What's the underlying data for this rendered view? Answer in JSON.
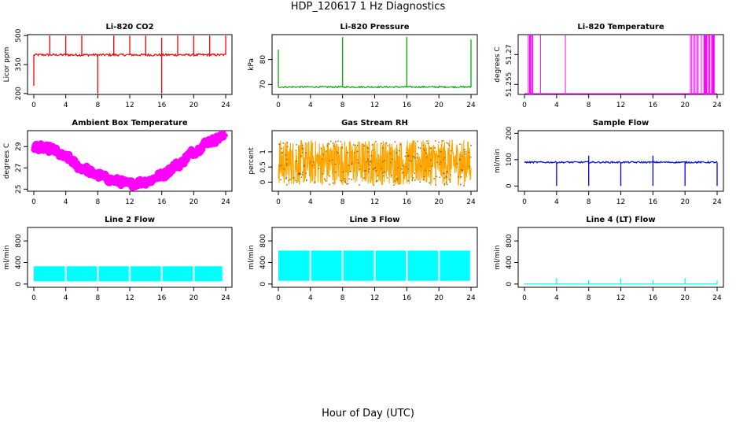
{
  "page": {
    "title": "HDP_120617  1 Hz Diagnostics",
    "xlabel": "Hour of Day (UTC)"
  },
  "chart_data": [
    {
      "type": "line",
      "title": "Li-820 CO2",
      "ylabel": "Licor ppm",
      "color": "#ff0000",
      "xlim": [
        0,
        24
      ],
      "xticks": [
        0,
        4,
        8,
        12,
        16,
        20,
        24
      ],
      "ylim": [
        195,
        505
      ],
      "yticks": [
        200,
        350,
        500
      ],
      "series": [
        {
          "name": "CO2",
          "baseline": 400,
          "noise": 6,
          "spikes_up": [
            [
              2,
              500
            ],
            [
              4,
              500
            ],
            [
              6,
              500
            ],
            [
              10,
              500
            ],
            [
              12,
              500
            ],
            [
              14,
              500
            ],
            [
              16,
              490
            ],
            [
              18,
              500
            ],
            [
              20,
              500
            ],
            [
              22,
              500
            ],
            [
              24,
              500
            ]
          ],
          "spikes_down": [
            [
              8,
              200
            ],
            [
              16,
              200
            ],
            [
              0,
              240
            ]
          ]
        }
      ]
    },
    {
      "type": "line",
      "title": "Li-820 Pressure",
      "ylabel": "kPa",
      "color": "#00aa00",
      "xlim": [
        0,
        24
      ],
      "xticks": [
        0,
        4,
        8,
        12,
        16,
        20,
        24
      ],
      "ylim": [
        66,
        90
      ],
      "yticks": [
        70,
        80
      ],
      "series": [
        {
          "name": "Pressure",
          "baseline": 69,
          "noise": 0.3,
          "spikes_up": [
            [
              0,
              84
            ],
            [
              8,
              89
            ],
            [
              16,
              89
            ],
            [
              24,
              88
            ]
          ],
          "spikes_down": []
        }
      ]
    },
    {
      "type": "line",
      "title": "Li-820 Temperature",
      "ylabel": "degrees C",
      "color": "#ff00ff",
      "xlim": [
        0,
        24
      ],
      "xticks": [
        0,
        4,
        8,
        12,
        16,
        20,
        24
      ],
      "ylim": [
        51.25,
        51.28
      ],
      "yticks": [
        51.255,
        51.27
      ],
      "series": [
        {
          "name": "Temperature",
          "low": 51.25,
          "high": 51.28,
          "dense_ranges": [
            [
              0.4,
              1.4
            ],
            [
              20.6,
              23.8
            ]
          ],
          "single_spikes": [
            2.0,
            5.1
          ]
        }
      ]
    },
    {
      "type": "line",
      "title": "Ambient Box Temperature",
      "ylabel": "degrees C",
      "color": "#ff00ff",
      "xlim": [
        0,
        24
      ],
      "xticks": [
        0,
        4,
        8,
        12,
        16,
        20,
        24
      ],
      "ylim": [
        24.8,
        30.5
      ],
      "yticks": [
        25,
        27,
        29
      ],
      "series": [
        {
          "name": "Ambient",
          "band": 0.7,
          "x": [
            0,
            2,
            4,
            6,
            8,
            10,
            12,
            14,
            16,
            18,
            20,
            22,
            24
          ],
          "y": [
            29.0,
            28.8,
            28.0,
            27.0,
            26.3,
            25.8,
            25.5,
            25.7,
            26.3,
            27.3,
            28.5,
            29.5,
            30.0
          ]
        }
      ]
    },
    {
      "type": "line",
      "title": "Gas Stream RH",
      "ylabel": "percent",
      "color": "#ffa500",
      "xlim": [
        0,
        24
      ],
      "xticks": [
        0,
        4,
        8,
        12,
        16,
        20,
        24
      ],
      "ylim": [
        -0.3,
        1.7
      ],
      "yticks": [
        0.0,
        0.5,
        1.0
      ],
      "series": [
        {
          "name": "RH",
          "low": -0.1,
          "high": 1.4
        }
      ]
    },
    {
      "type": "line",
      "title": "Sample Flow",
      "ylabel": "ml/min",
      "color": "#0000ff",
      "xlim": [
        0,
        24
      ],
      "xticks": [
        0,
        4,
        8,
        12,
        16,
        20,
        24
      ],
      "ylim": [
        -20,
        210
      ],
      "yticks": [
        0,
        100,
        200
      ],
      "series": [
        {
          "name": "Sample",
          "baseline": 90,
          "noise": 3,
          "spikes_up": [
            [
              8,
              115
            ],
            [
              16,
              115
            ]
          ],
          "spikes_down": [
            [
              4,
              0
            ],
            [
              8,
              0
            ],
            [
              12,
              0
            ],
            [
              16,
              0
            ],
            [
              20,
              0
            ],
            [
              24,
              0
            ]
          ]
        }
      ]
    },
    {
      "type": "area",
      "title": "Line 2 Flow",
      "ylabel": "ml/min",
      "color": "#00ffff",
      "xlim": [
        0,
        24
      ],
      "xticks": [
        0,
        4,
        8,
        12,
        16,
        20,
        24
      ],
      "ylim": [
        -60,
        1050
      ],
      "yticks": [
        0,
        400,
        800
      ],
      "series": [
        {
          "name": "Line 2",
          "low": 50,
          "high": 330,
          "gaps": [
            4,
            8,
            12,
            16,
            20
          ],
          "end": 23.7
        }
      ]
    },
    {
      "type": "area",
      "title": "Line 3 Flow",
      "ylabel": "ml/min",
      "color": "#00ffff",
      "xlim": [
        0,
        24
      ],
      "xticks": [
        0,
        4,
        8,
        12,
        16,
        20,
        24
      ],
      "ylim": [
        -60,
        1050
      ],
      "yticks": [
        0,
        400,
        800
      ],
      "series": [
        {
          "name": "Line 3",
          "low": 60,
          "high": 620,
          "gaps": [
            4,
            8,
            12,
            16,
            20
          ],
          "end": 24
        }
      ]
    },
    {
      "type": "line",
      "title": "Line 4 (LT) Flow",
      "ylabel": "ml/min",
      "color": "#00ffff",
      "xlim": [
        0,
        24
      ],
      "xticks": [
        0,
        4,
        8,
        12,
        16,
        20,
        24
      ],
      "ylim": [
        -60,
        1050
      ],
      "yticks": [
        0,
        400,
        800
      ],
      "series": [
        {
          "name": "Line 4",
          "baseline": 0,
          "noise": 0,
          "spikes_up": [
            [
              4,
              110
            ],
            [
              8,
              70
            ],
            [
              12,
              110
            ],
            [
              16,
              70
            ],
            [
              20,
              110
            ],
            [
              24,
              70
            ]
          ],
          "spikes_down": []
        }
      ]
    }
  ]
}
